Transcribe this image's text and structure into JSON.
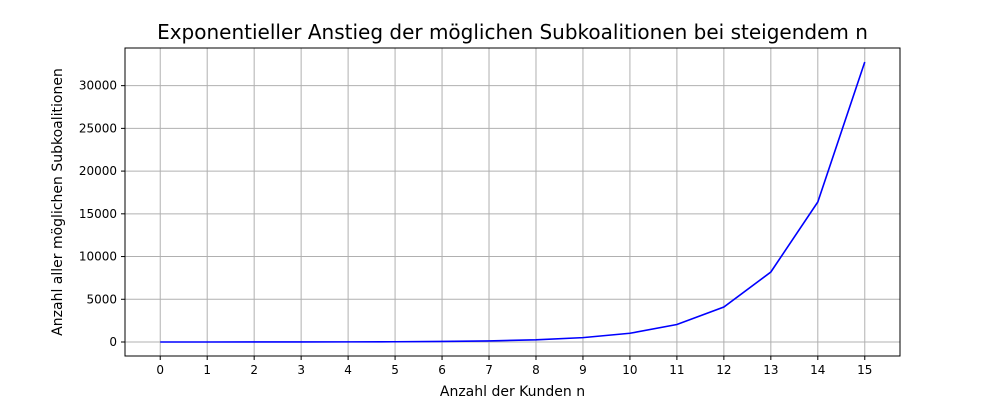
{
  "chart_data": {
    "type": "line",
    "title": "Exponentieller Anstieg der möglichen Subkoalitionen bei steigendem n",
    "xlabel": "Anzahl der Kunden n",
    "ylabel": "Anzahl aller möglichen Subkoalitionen",
    "x": [
      0,
      1,
      2,
      3,
      4,
      5,
      6,
      7,
      8,
      9,
      10,
      11,
      12,
      13,
      14,
      15
    ],
    "series": [
      {
        "values": [
          0,
          1,
          3,
          7,
          15,
          31,
          63,
          127,
          255,
          511,
          1023,
          2047,
          4095,
          8191,
          16383,
          32767
        ],
        "color": "#0000ff"
      }
    ],
    "xticks": [
      "0",
      "1",
      "2",
      "3",
      "4",
      "5",
      "6",
      "7",
      "8",
      "9",
      "10",
      "11",
      "12",
      "13",
      "14",
      "15"
    ],
    "yticks": [
      0,
      5000,
      10000,
      15000,
      20000,
      25000,
      30000
    ],
    "xlim": [
      -0.75,
      15.75
    ],
    "ylim": [
      -1638,
      34405
    ],
    "grid": true,
    "grid_color": "#b0b0b0"
  }
}
